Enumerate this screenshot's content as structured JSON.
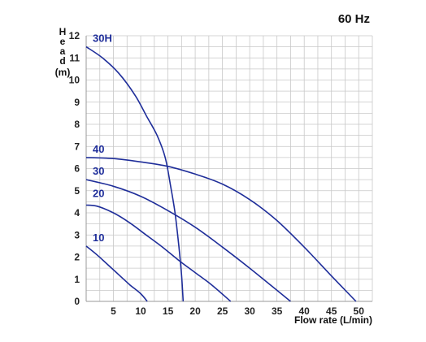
{
  "frequency_label": "60 Hz",
  "chart_data": {
    "type": "line",
    "xlabel": "Flow rate  (L/min)",
    "ylabel_letters": [
      "H",
      "e",
      "a",
      "d"
    ],
    "ylabel_unit": "(m)",
    "xlim": [
      0,
      52.5
    ],
    "ylim": [
      0,
      12
    ],
    "x_ticks": [
      0,
      5,
      10,
      15,
      20,
      25,
      30,
      35,
      40,
      45,
      50
    ],
    "y_ticks": [
      0,
      1,
      2,
      3,
      4,
      5,
      6,
      7,
      8,
      9,
      10,
      11,
      12
    ],
    "grid": true,
    "series": [
      {
        "name": "10",
        "color": "#1f2e9a",
        "points": [
          [
            0,
            2.5
          ],
          [
            2,
            2.1
          ],
          [
            4,
            1.65
          ],
          [
            6,
            1.2
          ],
          [
            8,
            0.75
          ],
          [
            10,
            0.35
          ],
          [
            11.2,
            0
          ]
        ]
      },
      {
        "name": "20",
        "color": "#1f2e9a",
        "points": [
          [
            0,
            4.35
          ],
          [
            2,
            4.3
          ],
          [
            5,
            4.0
          ],
          [
            8,
            3.55
          ],
          [
            11,
            3.0
          ],
          [
            14,
            2.45
          ],
          [
            17,
            1.85
          ],
          [
            20,
            1.3
          ],
          [
            23,
            0.75
          ],
          [
            26.5,
            0
          ]
        ]
      },
      {
        "name": "30",
        "color": "#1f2e9a",
        "points": [
          [
            0,
            5.5
          ],
          [
            5,
            5.2
          ],
          [
            10,
            4.75
          ],
          [
            15,
            4.1
          ],
          [
            20,
            3.35
          ],
          [
            25,
            2.45
          ],
          [
            30,
            1.5
          ],
          [
            34,
            0.7
          ],
          [
            37.5,
            0
          ]
        ]
      },
      {
        "name": "40",
        "color": "#1f2e9a",
        "points": [
          [
            0,
            6.5
          ],
          [
            5,
            6.45
          ],
          [
            10,
            6.3
          ],
          [
            15,
            6.1
          ],
          [
            20,
            5.75
          ],
          [
            25,
            5.3
          ],
          [
            30,
            4.6
          ],
          [
            35,
            3.65
          ],
          [
            40,
            2.45
          ],
          [
            45,
            1.15
          ],
          [
            49.5,
            0
          ]
        ]
      },
      {
        "name": "30H",
        "color": "#1f2e9a",
        "points": [
          [
            0,
            11.5
          ],
          [
            3,
            11.0
          ],
          [
            6,
            10.3
          ],
          [
            9,
            9.3
          ],
          [
            11,
            8.4
          ],
          [
            13,
            7.5
          ],
          [
            14.5,
            6.5
          ],
          [
            15.5,
            5.2
          ],
          [
            16.3,
            4.0
          ],
          [
            17,
            2.5
          ],
          [
            17.5,
            1.2
          ],
          [
            17.8,
            0
          ]
        ]
      }
    ],
    "curve_labels": [
      {
        "text": "30H",
        "x": 1.2,
        "y": 11.72
      },
      {
        "text": "40",
        "x": 1.2,
        "y": 6.72
      },
      {
        "text": "30",
        "x": 1.2,
        "y": 5.72
      },
      {
        "text": "20",
        "x": 1.2,
        "y": 4.72
      },
      {
        "text": "10",
        "x": 1.2,
        "y": 2.72
      }
    ]
  }
}
